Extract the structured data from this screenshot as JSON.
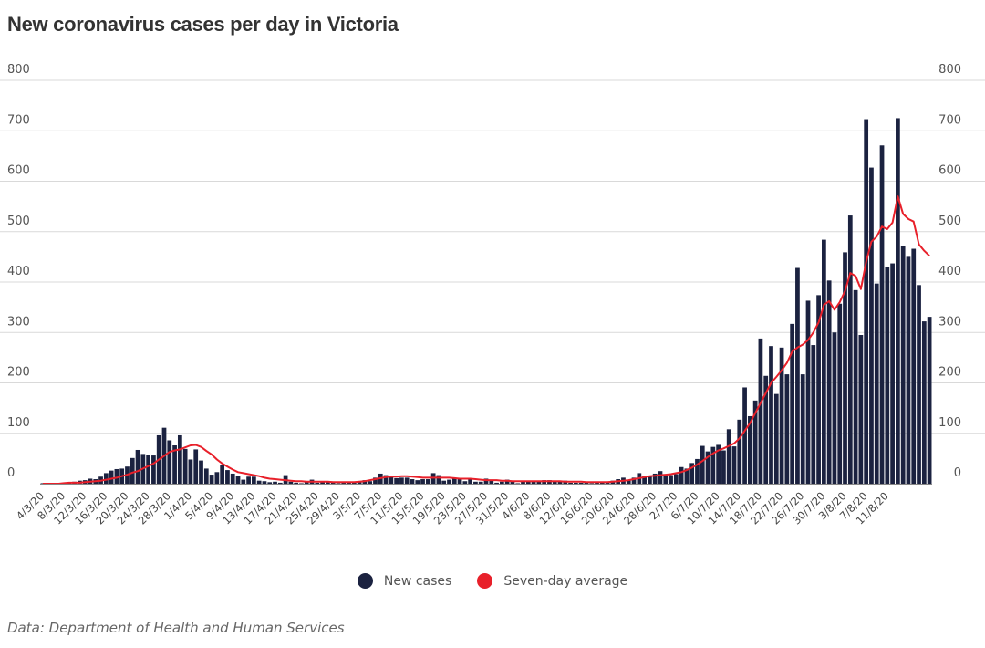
{
  "title": "New coronavirus cases per day in Victoria",
  "source": "Data: Department of Health and Human Services",
  "legend": {
    "new_cases": "New cases",
    "seven_day": "Seven-day average"
  },
  "colors": {
    "bars": "#1b2240",
    "average": "#e8202a",
    "grid": "#d9d9d9",
    "axis": "#888888"
  },
  "chart_data": {
    "type": "bar",
    "title": "New coronavirus cases per day in Victoria",
    "ylim": [
      0,
      800
    ],
    "yticks": [
      0,
      100,
      200,
      300,
      400,
      500,
      600,
      700,
      800
    ],
    "grid": true,
    "legend_position": "bottom-center",
    "x_tick_labels": [
      "4/3/20",
      "8/3/20",
      "12/3/20",
      "16/3/20",
      "20/3/20",
      "24/3/20",
      "28/3/20",
      "1/4/20",
      "5/4/20",
      "9/4/20",
      "13/4/20",
      "17/4/20",
      "21/4/20",
      "25/4/20",
      "29/4/20",
      "3/5/20",
      "7/5/20",
      "11/5/20",
      "15/5/20",
      "19/5/20",
      "23/5/20",
      "27/5/20",
      "31/5/20",
      "4/6/20",
      "8/6/20",
      "12/6/20",
      "16/6/20",
      "20/6/20",
      "24/6/20",
      "28/6/20",
      "2/7/20",
      "6/7/20",
      "10/7/20",
      "14/7/20",
      "18/7/20",
      "22/7/20",
      "26/7/20",
      "30/7/20",
      "3/8/20",
      "7/8/20",
      "11/8/20"
    ],
    "date_start": "4/3/20",
    "date_end": "11/8/20",
    "series": [
      {
        "name": "New cases",
        "type": "bar",
        "values": [
          1,
          0,
          1,
          1,
          2,
          3,
          4,
          6,
          7,
          10,
          9,
          14,
          21,
          26,
          29,
          30,
          34,
          51,
          67,
          59,
          57,
          56,
          96,
          111,
          86,
          76,
          96,
          69,
          48,
          68,
          46,
          30,
          18,
          23,
          38,
          27,
          20,
          16,
          8,
          14,
          14,
          6,
          5,
          3,
          4,
          2,
          17,
          4,
          2,
          1,
          3,
          8,
          2,
          3,
          3,
          2,
          1,
          2,
          3,
          2,
          3,
          7,
          5,
          12,
          20,
          17,
          16,
          11,
          12,
          12,
          9,
          7,
          9,
          9,
          21,
          17,
          6,
          8,
          11,
          9,
          5,
          10,
          4,
          4,
          10,
          7,
          2,
          4,
          8,
          5,
          1,
          4,
          5,
          4,
          5,
          7,
          7,
          5,
          4,
          6,
          2,
          2,
          2,
          3,
          1,
          2,
          4,
          3,
          6,
          9,
          12,
          7,
          12,
          21,
          16,
          16,
          20,
          25,
          18,
          17,
          19,
          33,
          30,
          41,
          49,
          75,
          64,
          73,
          77,
          66,
          108,
          74,
          127,
          191,
          134,
          165,
          288,
          214,
          273,
          178,
          270,
          217,
          317,
          428,
          217,
          363,
          275,
          374,
          484,
          403,
          300,
          357,
          459,
          532,
          384,
          295,
          723,
          627,
          397,
          671,
          429,
          437,
          725,
          471,
          450,
          466,
          394,
          322,
          331
        ],
        "note": "daily series from 4/3/20 to 11/8/20"
      },
      {
        "name": "Seven-day average",
        "type": "line",
        "values": [
          0,
          0,
          0,
          0,
          1,
          2,
          2,
          2,
          3,
          4,
          5,
          6,
          8,
          10,
          12,
          15,
          18,
          22,
          25,
          30,
          35,
          40,
          48,
          55,
          63,
          66,
          68,
          72,
          76,
          77,
          73,
          65,
          58,
          48,
          40,
          34,
          28,
          23,
          21,
          19,
          17,
          15,
          12,
          10,
          9,
          8,
          7,
          6,
          5,
          5,
          4,
          4,
          4,
          4,
          4,
          3,
          3,
          3,
          3,
          3,
          4,
          5,
          7,
          9,
          11,
          13,
          14,
          14,
          15,
          15,
          14,
          13,
          12,
          12,
          12,
          12,
          12,
          12,
          11,
          10,
          10,
          10,
          9,
          8,
          7,
          7,
          7,
          6,
          6,
          5,
          5,
          5,
          5,
          5,
          5,
          5,
          5,
          5,
          5,
          4,
          4,
          4,
          4,
          3,
          3,
          3,
          3,
          3,
          4,
          5,
          6,
          7,
          9,
          11,
          13,
          15,
          16,
          17,
          18,
          19,
          21,
          23,
          27,
          32,
          38,
          45,
          53,
          60,
          66,
          70,
          75,
          80,
          90,
          105,
          120,
          140,
          160,
          180,
          200,
          212,
          225,
          240,
          262,
          270,
          276,
          285,
          300,
          320,
          355,
          362,
          345,
          360,
          382,
          418,
          412,
          386,
          440,
          480,
          490,
          510,
          505,
          518,
          570,
          535,
          525,
          520,
          475,
          462,
          452
        ]
      }
    ]
  }
}
